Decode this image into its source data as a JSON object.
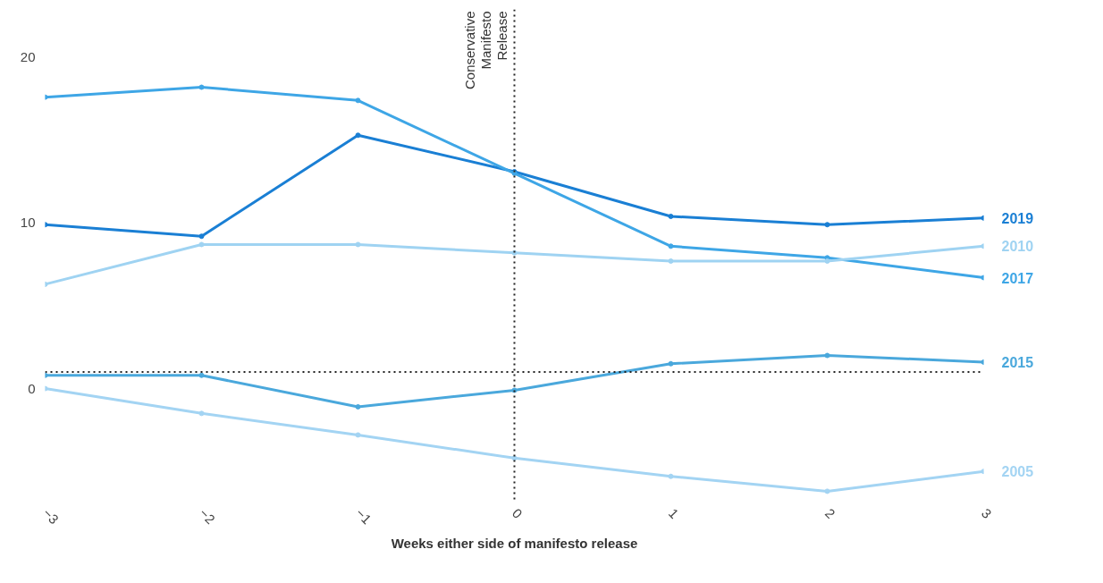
{
  "chart_data": {
    "type": "line",
    "xlabel": "Weeks either side of manifesto release",
    "x": [
      -3,
      -2,
      -1,
      0,
      1,
      2,
      3
    ],
    "xlim": [
      -3,
      3
    ],
    "xticks": [
      -3,
      -2,
      -1,
      0,
      1,
      2,
      3
    ],
    "ylim": [
      -6.8,
      22.9
    ],
    "yticks": [
      0,
      10,
      20
    ],
    "grid": false,
    "marker": "circle",
    "line_style": "solid",
    "series": [
      {
        "name": "2019",
        "color": "#1a7fd4",
        "values": [
          9.9,
          9.2,
          15.3,
          13.1,
          10.4,
          9.9,
          10.3
        ]
      },
      {
        "name": "2017",
        "color": "#3ea6e6",
        "values": [
          17.6,
          18.2,
          17.4,
          13.0,
          8.6,
          7.9,
          6.7
        ]
      },
      {
        "name": "2010",
        "color": "#9fd3f2",
        "values": [
          6.3,
          8.7,
          8.7,
          8.2,
          7.7,
          7.7,
          8.6
        ]
      },
      {
        "name": "2015",
        "color": "#4aa8dc",
        "values": [
          0.8,
          0.8,
          -1.1,
          -0.1,
          1.5,
          2.0,
          1.6
        ]
      },
      {
        "name": "2005",
        "color": "#a3d4f3",
        "values": [
          0.0,
          -1.5,
          -2.8,
          -4.2,
          -5.3,
          -6.2,
          -5.0
        ]
      }
    ],
    "ref_lines": [
      {
        "axis": "x",
        "value": 0,
        "label": "Conservative Manifesto Release",
        "color": "#222222",
        "line_style": "dotted"
      },
      {
        "axis": "y",
        "value": 1,
        "label": null,
        "color": "#222222",
        "line_style": "dotted"
      }
    ]
  }
}
